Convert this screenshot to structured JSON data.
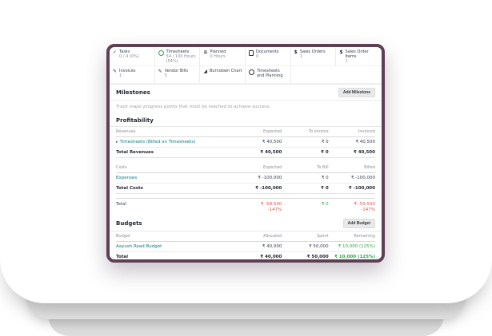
{
  "colors": {
    "accent": "#5e3f55",
    "link": "#017e84",
    "danger": "#e05252",
    "success": "#28a745",
    "layer_mid": "#e7e7e7",
    "layer_back": "#dedede"
  },
  "icons": {
    "check": "✓",
    "planned": "≡",
    "dollar": "$",
    "edit": "✎",
    "burndown": "◢",
    "caret": "▸"
  },
  "stats": [
    {
      "label": "Tasks",
      "value": "0 / 4 (0%)"
    },
    {
      "label": "Timesheets",
      "value": "54 / 100 Hours (54%)"
    },
    {
      "label": "Planned",
      "value": "0 Hours"
    },
    {
      "label": "Documents",
      "value": "0"
    },
    {
      "label": "Sales Orders",
      "value": "1"
    },
    {
      "label": "Sales Order Items",
      "value": "1"
    },
    {
      "label": "Invoices",
      "value": "1"
    },
    {
      "label": "Vendor Bills",
      "value": "5"
    },
    {
      "label": "Burndown Chart",
      "value": ""
    },
    {
      "label": "Timesheets and Planning",
      "value": ""
    }
  ],
  "milestones": {
    "title": "Milestones",
    "add_button": "Add Milestone",
    "description": "Track major progress points that must be reached to achieve success."
  },
  "profitability": {
    "title": "Profitability",
    "revenues": {
      "headers": [
        "Revenues",
        "Expected",
        "To Invoice",
        "Invoiced"
      ],
      "rows": [
        {
          "label": "Timesheets (Billed on Timesheets)",
          "expected": "₹ 40,500",
          "to_invoice": "₹ 0",
          "invoiced": "₹ 40,500"
        }
      ],
      "total": {
        "label": "Total Revenues",
        "expected": "₹ 40,500",
        "to_invoice": "₹ 0",
        "invoiced": "₹ 40,500"
      }
    },
    "costs": {
      "headers": [
        "Costs",
        "Expected",
        "To Bill",
        "Billed"
      ],
      "rows": [
        {
          "label": "Expenses",
          "expected": "₹ -100,000",
          "to_bill": "₹ 0",
          "billed": "₹ -100,000"
        }
      ],
      "total": {
        "label": "Total Costs",
        "expected": "₹ -100,000",
        "to_bill": "₹ 0",
        "billed": "₹ -100,000"
      }
    },
    "total": {
      "label": "Total",
      "expected": "₹ -59,500",
      "expected_pct": "-147%",
      "to_bill": "₹ 0",
      "billed": "₹ -59,500",
      "billed_pct": "-147%"
    }
  },
  "budgets": {
    "title": "Budgets",
    "add_button": "Add Budget",
    "headers": [
      "Budget",
      "Allocated",
      "Spent",
      "Remaining"
    ],
    "rows": [
      {
        "label": "Aayush Road Budget",
        "allocated": "₹ 40,000",
        "spent": "₹ 50,000",
        "remaining": "₹ 10,000 (125%)"
      }
    ],
    "total": {
      "label": "Total",
      "allocated": "₹ 40,000",
      "spent": "₹ 50,000",
      "remaining": "₹ 10,000 (125%)"
    }
  }
}
